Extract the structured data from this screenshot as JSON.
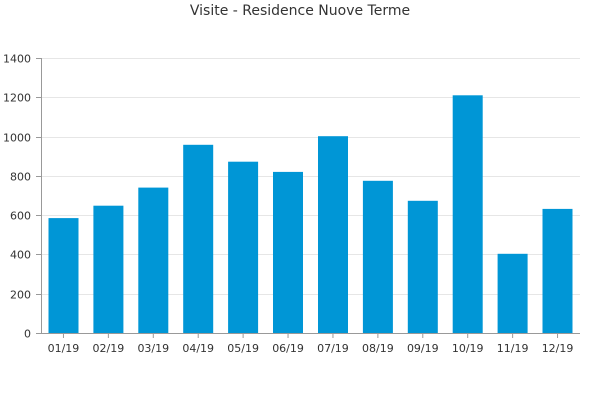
{
  "chart_data": {
    "type": "bar",
    "title": "Visite - Residence Nuove Terme",
    "categories": [
      "01/19",
      "02/19",
      "03/19",
      "04/19",
      "05/19",
      "06/19",
      "07/19",
      "08/19",
      "09/19",
      "10/19",
      "11/19",
      "12/19"
    ],
    "values": [
      585,
      648,
      740,
      958,
      872,
      820,
      1002,
      775,
      673,
      1210,
      403,
      632
    ],
    "ylim": [
      0,
      1400
    ],
    "yticks": [
      0,
      200,
      400,
      600,
      800,
      1000,
      1200,
      1400
    ],
    "grid": true,
    "bar_color": "#0096d6",
    "grid_color": "#e6e6e6",
    "axis_color": "#999999",
    "text_color": "#333333"
  }
}
